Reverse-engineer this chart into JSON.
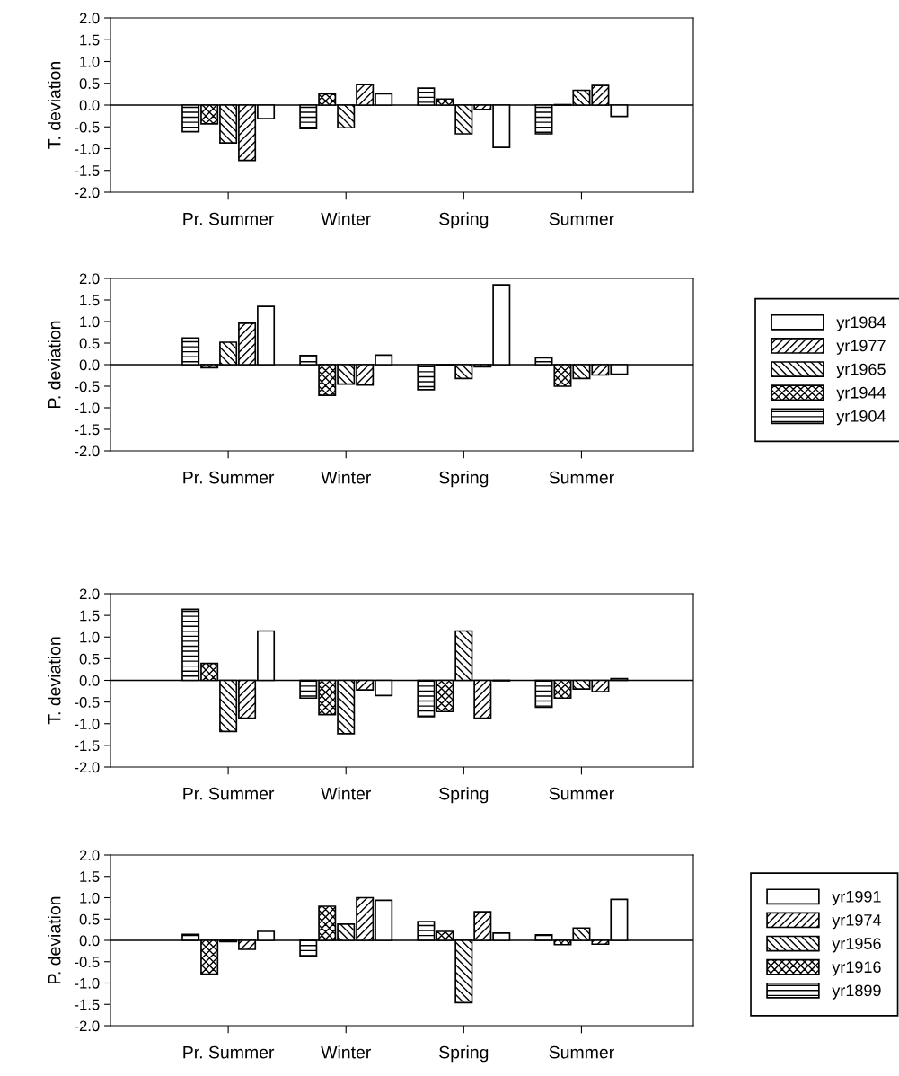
{
  "chart_data": [
    {
      "type": "bar",
      "ylabel": "T. deviation",
      "categories": [
        "Pr. Summer",
        "Winter",
        "Spring",
        "Summer"
      ],
      "ylim": [
        -2.0,
        2.0
      ],
      "yticks": [
        {
          "value": -2,
          "label": "-2.0"
        },
        {
          "value": -1.5,
          "label": "-1.5"
        },
        {
          "value": -1,
          "label": "-1.0"
        },
        {
          "value": -0.5,
          "label": "-0.5"
        },
        {
          "value": 0,
          "label": "0.0"
        },
        {
          "value": 0.5,
          "label": "0.5"
        },
        {
          "value": 1,
          "label": "1.0"
        },
        {
          "value": 1.5,
          "label": "1.5"
        },
        {
          "value": 2,
          "label": "2.0"
        }
      ],
      "grid": false,
      "legend": false,
      "ref_lines": [
        {
          "axis": "y",
          "value": 0,
          "label": null
        }
      ],
      "series": [
        {
          "color": "#ffffff",
          "values": [
            -0.31,
            0.26,
            -0.97,
            -0.26
          ]
        },
        {
          "color": "#000000",
          "values": [
            -1.27,
            0.47,
            -0.1,
            0.45
          ]
        },
        {
          "color": "#000000",
          "values": [
            -0.87,
            -0.52,
            -0.66,
            0.34
          ]
        },
        {
          "color": "#000000",
          "values": [
            -0.43,
            0.26,
            0.14,
            0.01
          ]
        },
        {
          "color": "#000000",
          "values": [
            -0.61,
            -0.54,
            0.39,
            -0.66
          ]
        }
      ]
    },
    {
      "type": "bar",
      "ylabel": "P. deviation",
      "categories": [
        "Pr. Summer",
        "Winter",
        "Spring",
        "Summer"
      ],
      "ylim": [
        -2.0,
        2.0
      ],
      "yticks": [
        {
          "value": -2,
          "label": "-2.0"
        },
        {
          "value": -1.5,
          "label": "-1.5"
        },
        {
          "value": -1,
          "label": "-1.0"
        },
        {
          "value": -0.5,
          "label": "-0.5"
        },
        {
          "value": 0,
          "label": "0.0"
        },
        {
          "value": 0.5,
          "label": "0.5"
        },
        {
          "value": 1,
          "label": "1.0"
        },
        {
          "value": 1.5,
          "label": "1.5"
        },
        {
          "value": 2,
          "label": "2.0"
        }
      ],
      "grid": false,
      "legend": "right",
      "ref_lines": [
        {
          "axis": "y",
          "value": 0,
          "label": null
        }
      ],
      "series": [
        {
          "name": "yr1984",
          "color": "#ffffff",
          "values": [
            1.35,
            0.22,
            1.85,
            -0.22
          ]
        },
        {
          "name": "yr1977",
          "color": "#000000",
          "values": [
            0.96,
            -0.47,
            -0.05,
            -0.24
          ]
        },
        {
          "name": "yr1965",
          "color": "#000000",
          "values": [
            0.52,
            -0.45,
            -0.32,
            -0.32
          ]
        },
        {
          "name": "yr1944",
          "color": "#000000",
          "values": [
            -0.07,
            -0.71,
            -0.01,
            -0.5
          ]
        },
        {
          "name": "yr1904",
          "color": "#000000",
          "values": [
            0.62,
            0.21,
            -0.58,
            0.16
          ]
        }
      ]
    },
    {
      "type": "bar",
      "ylabel": "T. deviation",
      "categories": [
        "Pr. Summer",
        "Winter",
        "Spring",
        "Summer"
      ],
      "ylim": [
        -2.0,
        2.0
      ],
      "yticks": [
        {
          "value": -2,
          "label": "-2.0"
        },
        {
          "value": -1.5,
          "label": "-1.5"
        },
        {
          "value": -1,
          "label": "-1.0"
        },
        {
          "value": -0.5,
          "label": "-0.5"
        },
        {
          "value": 0,
          "label": "0.0"
        },
        {
          "value": 0.5,
          "label": "0.5"
        },
        {
          "value": 1,
          "label": "1.0"
        },
        {
          "value": 1.5,
          "label": "1.5"
        },
        {
          "value": 2,
          "label": "2.0"
        }
      ],
      "grid": false,
      "legend": false,
      "ref_lines": [
        {
          "axis": "y",
          "value": 0,
          "label": null
        }
      ],
      "series": [
        {
          "color": "#ffffff",
          "values": [
            1.14,
            -0.35,
            -0.01,
            0.04
          ]
        },
        {
          "color": "#000000",
          "values": [
            -0.87,
            -0.22,
            -0.87,
            -0.26
          ]
        },
        {
          "color": "#000000",
          "values": [
            -1.18,
            -1.23,
            1.14,
            -0.2
          ]
        },
        {
          "color": "#000000",
          "values": [
            0.39,
            -0.79,
            -0.72,
            -0.41
          ]
        },
        {
          "color": "#000000",
          "values": [
            1.64,
            -0.41,
            -0.84,
            -0.62
          ]
        }
      ]
    },
    {
      "type": "bar",
      "ylabel": "P. deviation",
      "categories": [
        "Pr. Summer",
        "Winter",
        "Spring",
        "Summer"
      ],
      "ylim": [
        -2.0,
        2.0
      ],
      "yticks": [
        {
          "value": -2,
          "label": "-2.0"
        },
        {
          "value": -1.5,
          "label": "-1.5"
        },
        {
          "value": -1,
          "label": "-1.0"
        },
        {
          "value": -0.5,
          "label": "-0.5"
        },
        {
          "value": 0,
          "label": "0.0"
        },
        {
          "value": 0.5,
          "label": "0.5"
        },
        {
          "value": 1,
          "label": "1.0"
        },
        {
          "value": 1.5,
          "label": "1.5"
        },
        {
          "value": 2,
          "label": "2.0"
        }
      ],
      "grid": false,
      "legend": "right",
      "ref_lines": [
        {
          "axis": "y",
          "value": 0,
          "label": null
        }
      ],
      "series": [
        {
          "name": "yr1991",
          "color": "#ffffff",
          "values": [
            0.21,
            0.94,
            0.17,
            0.96
          ]
        },
        {
          "name": "yr1974",
          "color": "#000000",
          "values": [
            -0.21,
            1.0,
            0.67,
            -0.09
          ]
        },
        {
          "name": "yr1956",
          "color": "#000000",
          "values": [
            -0.03,
            0.38,
            -1.46,
            0.29
          ]
        },
        {
          "name": "yr1916",
          "color": "#000000",
          "values": [
            -0.79,
            0.8,
            0.21,
            -0.1
          ]
        },
        {
          "name": "yr1899",
          "color": "#000000",
          "values": [
            0.14,
            -0.37,
            0.44,
            0.13
          ]
        }
      ]
    }
  ]
}
